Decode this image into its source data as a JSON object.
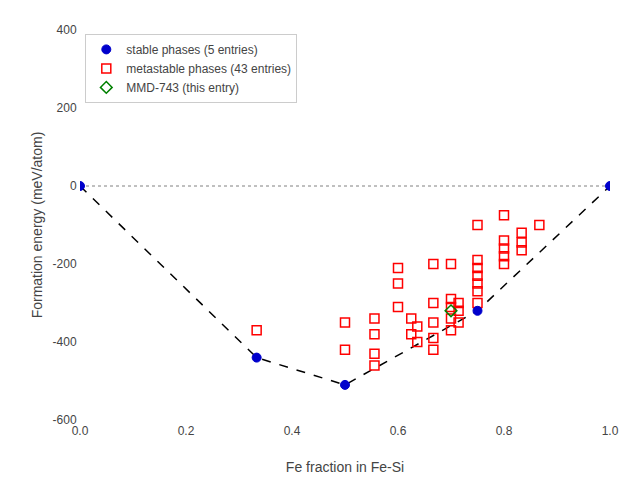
{
  "chart_data": {
    "type": "scatter",
    "xlabel": "Fe fraction in Fe-Si",
    "ylabel": "Formation energy (meV/atom)",
    "xlim": [
      0.0,
      1.0
    ],
    "ylim": [
      -600,
      400
    ],
    "xticks": [
      {
        "value": 0.0,
        "label": "0.0"
      },
      0.2,
      0.4,
      0.6,
      0.8,
      {
        "value": 1.0,
        "label": "1.0"
      }
    ],
    "yticks": [
      -600,
      -400,
      -200,
      0,
      200,
      400
    ],
    "grid": false,
    "legend": "upper left",
    "series": [
      {
        "name": "stable phases (5 entries)",
        "type": "scatter",
        "marker": "circle",
        "color": "#0000cc",
        "x": [
          0.0,
          0.3333,
          0.5,
          0.75,
          1.0
        ],
        "values": [
          0.0,
          -440,
          -510,
          -320,
          0.0
        ]
      },
      {
        "name": "metastable phases (43 entries)",
        "type": "scatter",
        "marker": "square-open",
        "color": "red",
        "x": [
          0.3333,
          0.5,
          0.5,
          0.5556,
          0.5556,
          0.5556,
          0.6,
          0.6,
          0.625,
          0.625,
          0.6364,
          0.6364,
          0.6667,
          0.6667,
          0.6667,
          0.6667,
          0.7,
          0.7,
          0.7,
          0.7,
          0.7143,
          0.7143,
          0.7143,
          0.75,
          0.75,
          0.75,
          0.75,
          0.75,
          0.75,
          0.8,
          0.8,
          0.8,
          0.8,
          0.8333,
          0.8333,
          0.8333,
          0.8667,
          0.75,
          0.6,
          0.5556,
          0.6667,
          0.7,
          0.8
        ],
        "values": [
          -370,
          -350,
          -420,
          -430,
          -380,
          -460,
          -250,
          -310,
          -340,
          -380,
          -360,
          -400,
          -390,
          -350,
          -420,
          -300,
          -370,
          -340,
          -310,
          -290,
          -320,
          -350,
          -300,
          -300,
          -270,
          -250,
          -230,
          -210,
          -190,
          -160,
          -140,
          -180,
          -200,
          -120,
          -145,
          -165,
          -100,
          -100,
          -210,
          -340,
          -200,
          -200,
          -75
        ]
      },
      {
        "name": "MMD-743 (this entry)",
        "type": "scatter",
        "marker": "diamond-open",
        "color": "green",
        "x": [
          0.7
        ],
        "values": [
          -320
        ]
      },
      {
        "type": "line",
        "line_style": "dashed",
        "color": "black",
        "x": [
          0.0,
          0.3333,
          0.5,
          0.75,
          1.0
        ],
        "values": [
          0.0,
          -440,
          -510,
          -320,
          0.0
        ]
      }
    ],
    "reference_lines": [
      {
        "y": 0,
        "line_style": "dotted",
        "color": "gray"
      }
    ]
  }
}
